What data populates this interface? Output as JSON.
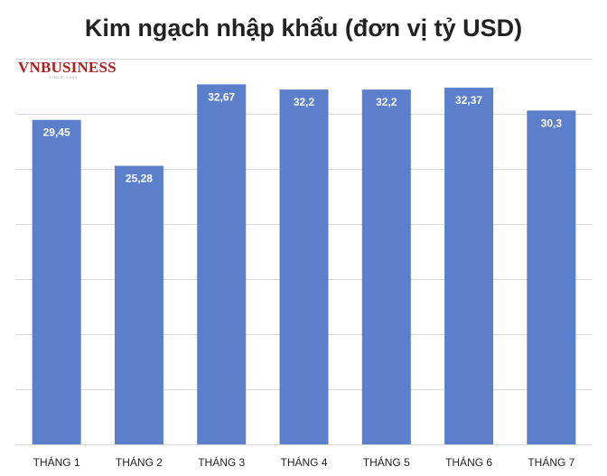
{
  "chart_data": {
    "type": "bar",
    "title": "Kim ngạch nhập khẩu (đơn vị tỷ USD)",
    "categories": [
      "THÁNG 1",
      "THÁNG 2",
      "THÁNG 3",
      "THÁNG 4",
      "THÁNG 5",
      "THÁNG 6",
      "THÁNG 7"
    ],
    "values": [
      29.45,
      25.28,
      32.67,
      32.2,
      32.2,
      32.37,
      30.3
    ],
    "value_labels": [
      "29,45",
      "25,28",
      "32,67",
      "32,2",
      "32,2",
      "32,37",
      "30,3"
    ],
    "ylim": [
      0,
      35
    ],
    "y_gridline_step": 5,
    "y_tick_labels_shown": false,
    "grid": true,
    "legend": "none",
    "bar_color": "#5b7fcb"
  },
  "watermark": {
    "text": "VNBUSINESS",
    "subtext": "SINCE 1993",
    "color": "#b01e1e"
  }
}
